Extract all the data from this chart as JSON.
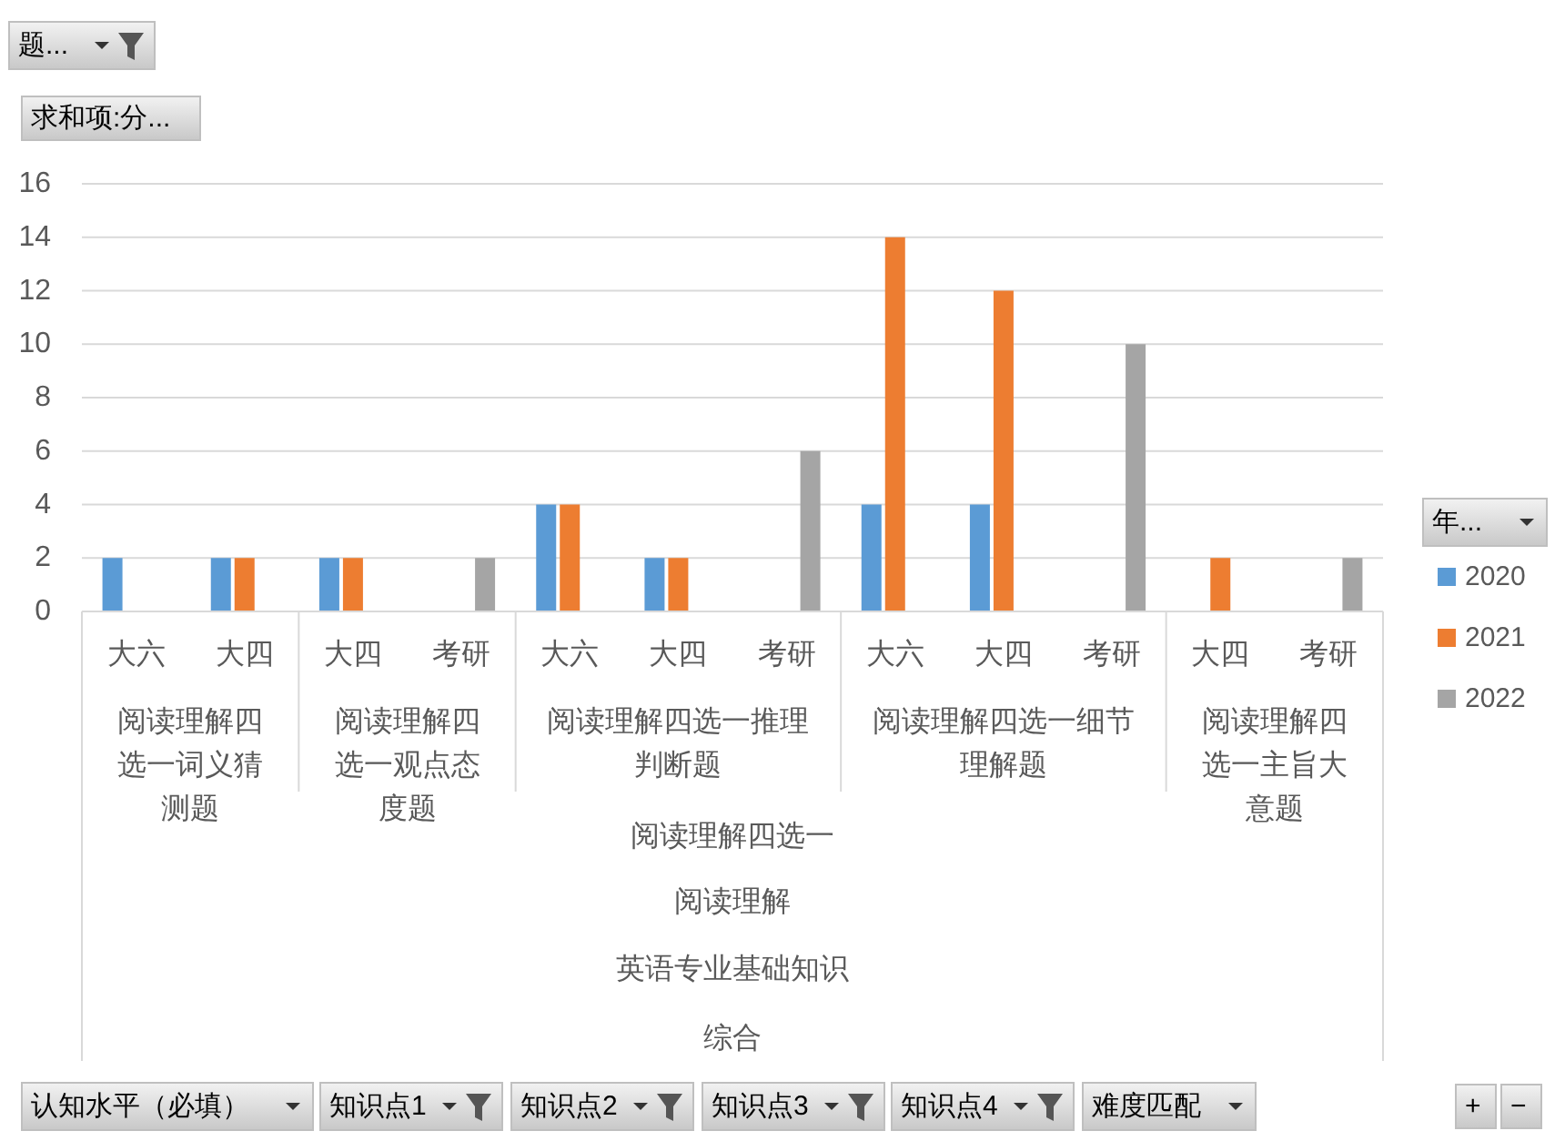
{
  "chart_data": {
    "type": "bar",
    "categories": [
      "大六",
      "大四",
      "大四",
      "考研",
      "大六",
      "大四",
      "考研",
      "大六",
      "大四",
      "考研",
      "大四",
      "考研"
    ],
    "series": [
      {
        "name": "2020",
        "color": "#5b9bd5",
        "values": [
          2,
          2,
          2,
          null,
          4,
          2,
          null,
          4,
          4,
          null,
          null,
          null
        ]
      },
      {
        "name": "2021",
        "color": "#ed7d31",
        "values": [
          null,
          2,
          2,
          null,
          4,
          2,
          null,
          14,
          12,
          null,
          2,
          null
        ]
      },
      {
        "name": "2022",
        "color": "#a5a5a5",
        "values": [
          null,
          null,
          null,
          2,
          null,
          null,
          6,
          null,
          null,
          10,
          null,
          2
        ]
      }
    ],
    "ylim": [
      0,
      16
    ],
    "yticks": [
      0,
      2,
      4,
      6,
      8,
      10,
      12,
      14,
      16
    ],
    "grid": "y",
    "legend": "right",
    "legend_title": "年...",
    "annotations": [
      "阅读理解四选一词义猜测题",
      "阅读理解四选一观点态度题",
      "阅读理解四选一推理判断题",
      "阅读理解四选一细节理解题",
      "阅读理解四选一主旨大意题",
      "阅读理解四选一",
      "阅读理解",
      "英语专业基础知识",
      "综合",
      "题...",
      "求和项:分...",
      "认知水平（必填）",
      "知识点1",
      "知识点2",
      "知识点3",
      "知识点4",
      "难度匹配",
      "+",
      "−"
    ]
  }
}
